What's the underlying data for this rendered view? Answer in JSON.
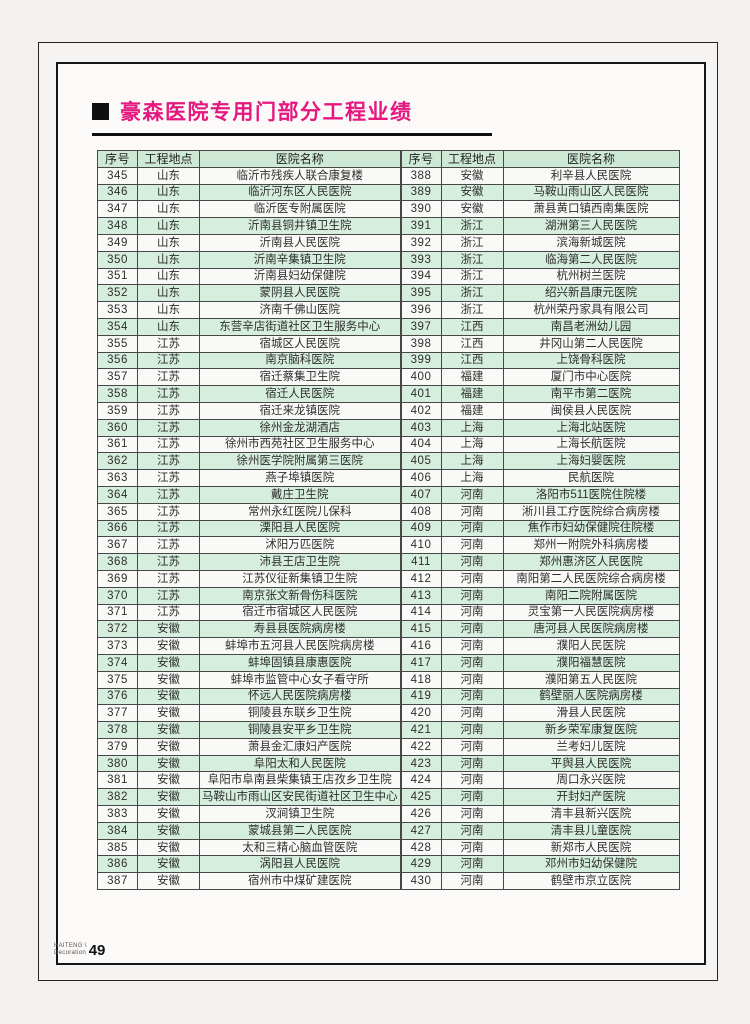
{
  "page": {
    "title": "豪森医院专用门部分工程业绩",
    "footer": {
      "brand_line1": "HAITENG \\",
      "brand_line2": "Decoration",
      "page_number": "49"
    }
  },
  "colors": {
    "title_accent": "#e5187f",
    "header_green": "#cfe9d7",
    "row_green": "#d6eedd",
    "row_white": "#f9f9f7",
    "border_dark": "#161616"
  },
  "table": {
    "headers": [
      "序号",
      "工程地点",
      "医院名称"
    ],
    "left_rows": [
      [
        "345",
        "山东",
        "临沂市残疾人联合康复楼"
      ],
      [
        "346",
        "山东",
        "临沂河东区人民医院"
      ],
      [
        "347",
        "山东",
        "临沂医专附属医院"
      ],
      [
        "348",
        "山东",
        "沂南县铜井镇卫生院"
      ],
      [
        "349",
        "山东",
        "沂南县人民医院"
      ],
      [
        "350",
        "山东",
        "沂南辛集镇卫生院"
      ],
      [
        "351",
        "山东",
        "沂南县妇幼保健院"
      ],
      [
        "352",
        "山东",
        "蒙阴县人民医院"
      ],
      [
        "353",
        "山东",
        "济南千佛山医院"
      ],
      [
        "354",
        "山东",
        "东营辛店街道社区卫生服务中心"
      ],
      [
        "355",
        "江苏",
        "宿城区人民医院"
      ],
      [
        "356",
        "江苏",
        "南京脑科医院"
      ],
      [
        "357",
        "江苏",
        "宿迁蔡集卫生院"
      ],
      [
        "358",
        "江苏",
        "宿迁人民医院"
      ],
      [
        "359",
        "江苏",
        "宿迁来龙镇医院"
      ],
      [
        "360",
        "江苏",
        "徐州金龙湖酒店"
      ],
      [
        "361",
        "江苏",
        "徐州市西苑社区卫生服务中心"
      ],
      [
        "362",
        "江苏",
        "徐州医学院附属第三医院"
      ],
      [
        "363",
        "江苏",
        "燕子埠镇医院"
      ],
      [
        "364",
        "江苏",
        "戴庄卫生院"
      ],
      [
        "365",
        "江苏",
        "常州永红医院儿保科"
      ],
      [
        "366",
        "江苏",
        "溧阳县人民医院"
      ],
      [
        "367",
        "江苏",
        "沭阳万匹医院"
      ],
      [
        "368",
        "江苏",
        "沛县王店卫生院"
      ],
      [
        "369",
        "江苏",
        "江苏仪征新集镇卫生院"
      ],
      [
        "370",
        "江苏",
        "南京张文新骨伤科医院"
      ],
      [
        "371",
        "江苏",
        "宿迁市宿城区人民医院"
      ],
      [
        "372",
        "安徽",
        "寿县县医院病房楼"
      ],
      [
        "373",
        "安徽",
        "蚌埠市五河县人民医院病房楼"
      ],
      [
        "374",
        "安徽",
        "蚌埠固镇县康惠医院"
      ],
      [
        "375",
        "安徽",
        "蚌埠市监管中心女子看守所"
      ],
      [
        "376",
        "安徽",
        "怀远人民医院病房楼"
      ],
      [
        "377",
        "安徽",
        "铜陵县东联乡卫生院"
      ],
      [
        "378",
        "安徽",
        "铜陵县安平乡卫生院"
      ],
      [
        "379",
        "安徽",
        "萧县金汇康妇产医院"
      ],
      [
        "380",
        "安徽",
        "阜阳太和人民医院"
      ],
      [
        "381",
        "安徽",
        "阜阳市阜南县柴集镇王店孜乡卫生院"
      ],
      [
        "382",
        "安徽",
        "马鞍山市雨山区安民街道社区卫生中心"
      ],
      [
        "383",
        "安徽",
        "汊涧镇卫生院"
      ],
      [
        "384",
        "安徽",
        "蒙城县第二人民医院"
      ],
      [
        "385",
        "安徽",
        "太和三精心脑血管医院"
      ],
      [
        "386",
        "安徽",
        "涡阳县人民医院"
      ],
      [
        "387",
        "安徽",
        "宿州市中煤矿建医院"
      ]
    ],
    "right_rows": [
      [
        "388",
        "安徽",
        "利辛县人民医院"
      ],
      [
        "389",
        "安徽",
        "马鞍山雨山区人民医院"
      ],
      [
        "390",
        "安徽",
        "萧县黄口镇西南集医院"
      ],
      [
        "391",
        "浙江",
        "湖洲第三人民医院"
      ],
      [
        "392",
        "浙江",
        "滨海新城医院"
      ],
      [
        "393",
        "浙江",
        "临海第二人民医院"
      ],
      [
        "394",
        "浙江",
        "杭州树兰医院"
      ],
      [
        "395",
        "浙江",
        "绍兴新昌康元医院"
      ],
      [
        "396",
        "浙江",
        "杭州荣丹家具有限公司"
      ],
      [
        "397",
        "江西",
        "南昌老洲幼儿园"
      ],
      [
        "398",
        "江西",
        "井冈山第二人民医院"
      ],
      [
        "399",
        "江西",
        "上饶骨科医院"
      ],
      [
        "400",
        "福建",
        "厦门市中心医院"
      ],
      [
        "401",
        "福建",
        "南平市第二医院"
      ],
      [
        "402",
        "福建",
        "闽侯县人民医院"
      ],
      [
        "403",
        "上海",
        "上海北站医院"
      ],
      [
        "404",
        "上海",
        "上海长航医院"
      ],
      [
        "405",
        "上海",
        "上海妇婴医院"
      ],
      [
        "406",
        "上海",
        "民航医院"
      ],
      [
        "407",
        "河南",
        "洛阳市511医院住院楼"
      ],
      [
        "408",
        "河南",
        "淅川县工疗医院综合病房楼"
      ],
      [
        "409",
        "河南",
        "焦作市妇幼保健院住院楼"
      ],
      [
        "410",
        "河南",
        "郑州一附院外科病房楼"
      ],
      [
        "411",
        "河南",
        "郑州惠济区人民医院"
      ],
      [
        "412",
        "河南",
        "南阳第二人民医院综合病房楼"
      ],
      [
        "413",
        "河南",
        "南阳二院附属医院"
      ],
      [
        "414",
        "河南",
        "灵宝第一人民医院病房楼"
      ],
      [
        "415",
        "河南",
        "唐河县人民医院病房楼"
      ],
      [
        "416",
        "河南",
        "濮阳人民医院"
      ],
      [
        "417",
        "河南",
        "濮阳福慧医院"
      ],
      [
        "418",
        "河南",
        "濮阳第五人民医院"
      ],
      [
        "419",
        "河南",
        "鹤壁丽人医院病房楼"
      ],
      [
        "420",
        "河南",
        "滑县人民医院"
      ],
      [
        "421",
        "河南",
        "新乡荣军康复医院"
      ],
      [
        "422",
        "河南",
        "兰考妇儿医院"
      ],
      [
        "423",
        "河南",
        "平舆县人民医院"
      ],
      [
        "424",
        "河南",
        "周口永兴医院"
      ],
      [
        "425",
        "河南",
        "开封妇产医院"
      ],
      [
        "426",
        "河南",
        "清丰县新兴医院"
      ],
      [
        "427",
        "河南",
        "清丰县儿童医院"
      ],
      [
        "428",
        "河南",
        "新郑市人民医院"
      ],
      [
        "429",
        "河南",
        "邓州市妇幼保健院"
      ],
      [
        "430",
        "河南",
        "鹤壁市京立医院"
      ]
    ]
  }
}
